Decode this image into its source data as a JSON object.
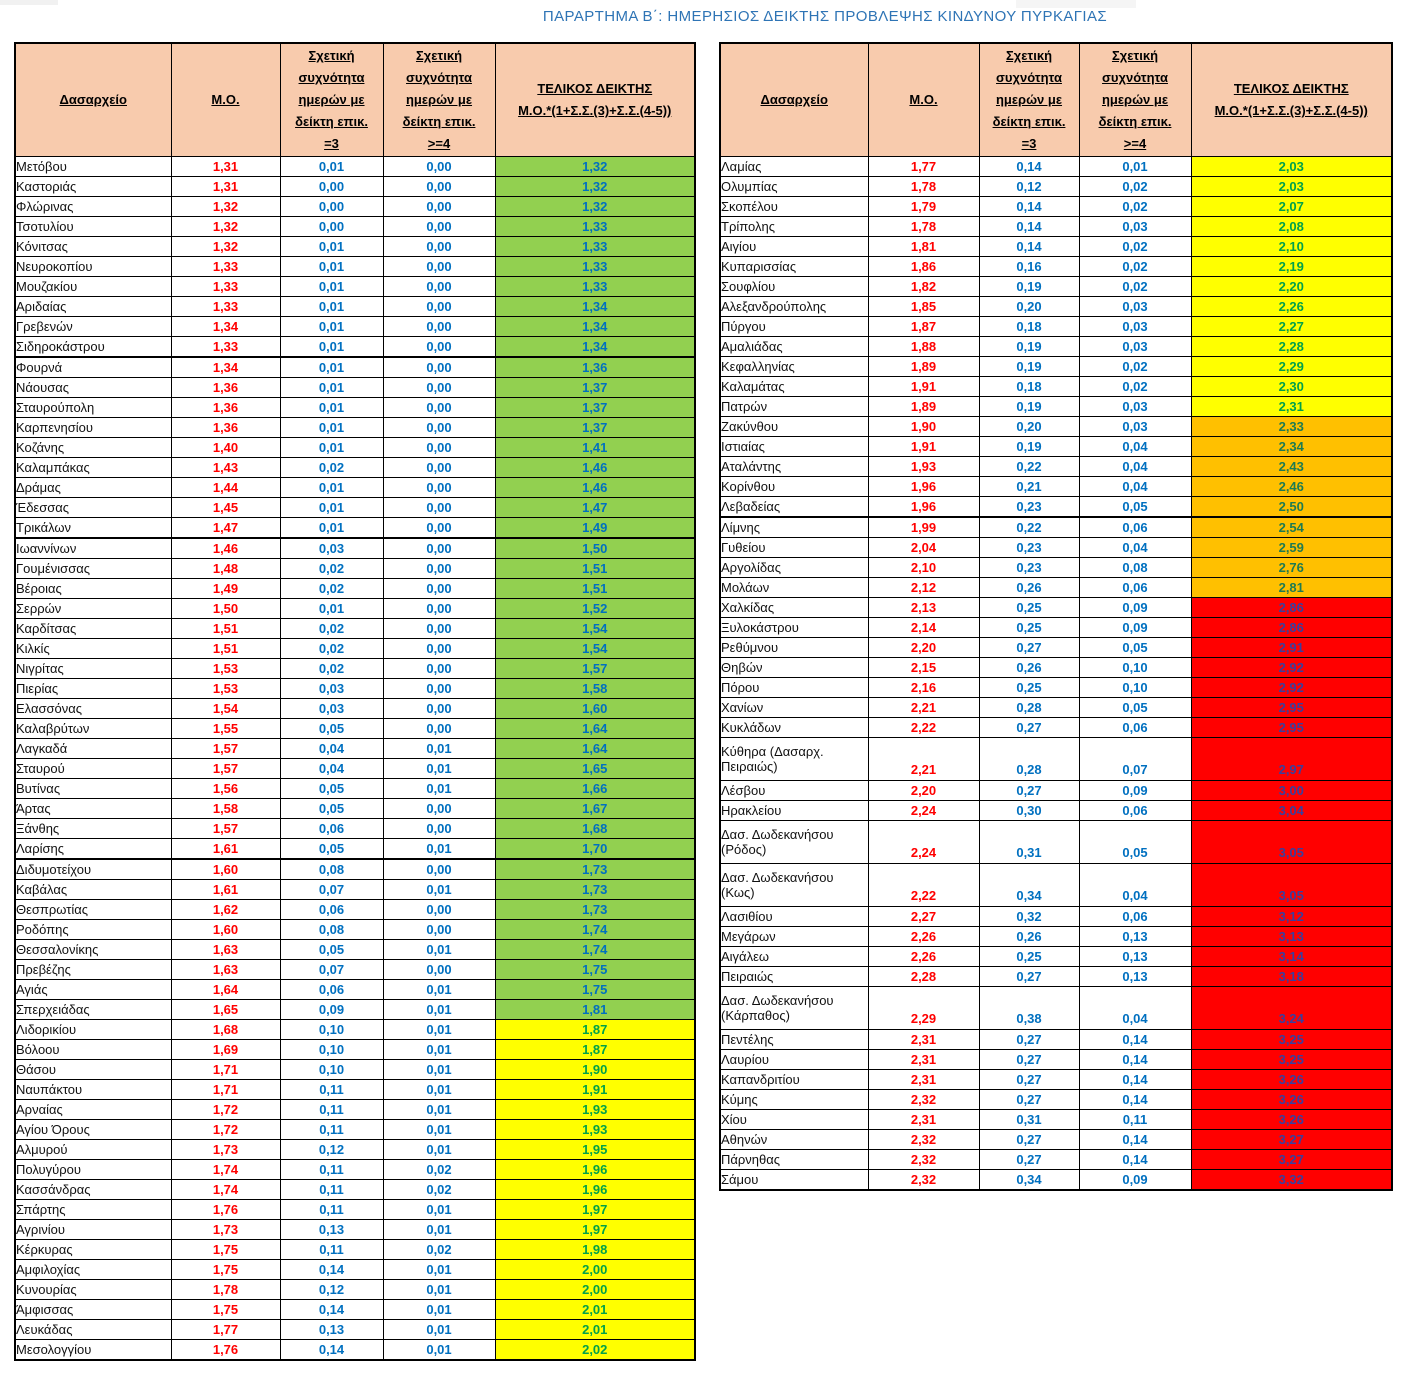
{
  "title": "ΠΑΡΑΡΤΗΜΑ Β΄: ΗΜΕΡΗΣΙΟΣ ΔΕΙΚΤΗΣ ΠΡΟΒΛΕΨΗΣ ΚΙΝΔΥΝΟΥ ΠΥΡΚΑΓΙΑΣ",
  "columns": {
    "office": "Δασαρχείο",
    "mean": "Μ.Ο.",
    "freq3": "Σχετική\nσυχνότητα\nημερών με\nδείκτη επικ.\n=3",
    "freq4": "Σχετική\nσυχνότητα\nημερών με\nδείκτη επικ.\n>=4",
    "final": "ΤΕΛΙΚΟΣ ΔΕΙΚΤΗΣ\nΜ.Ο.*(1+Σ.Σ.(3)+Σ.Σ.(4-5))"
  },
  "palette": {
    "header_bg": "#F8CBAD",
    "tier_green": "#92D050",
    "tier_yellow": "#FFFF00",
    "tier_orange": "#FFC000",
    "tier_red": "#FF0000",
    "mean_text": "#FF0000",
    "freq_text": "#0070C0",
    "title_text": "#2E74B5"
  },
  "tables": {
    "left": {
      "rows": [
        {
          "name": "Μετόβου",
          "mo": "1,31",
          "f3": "0,01",
          "f4": "0,00",
          "final": "1,32",
          "tier": "green"
        },
        {
          "name": "Καστοριάς",
          "mo": "1,31",
          "f3": "0,00",
          "f4": "0,00",
          "final": "1,32",
          "tier": "green"
        },
        {
          "name": "Φλώρινας",
          "mo": "1,32",
          "f3": "0,00",
          "f4": "0,00",
          "final": "1,32",
          "tier": "green"
        },
        {
          "name": "Τσοτυλίου",
          "mo": "1,32",
          "f3": "0,00",
          "f4": "0,00",
          "final": "1,33",
          "tier": "green"
        },
        {
          "name": "Κόνιτσας",
          "mo": "1,32",
          "f3": "0,01",
          "f4": "0,00",
          "final": "1,33",
          "tier": "green"
        },
        {
          "name": "Νευροκοπίου",
          "mo": "1,33",
          "f3": "0,01",
          "f4": "0,00",
          "final": "1,33",
          "tier": "green"
        },
        {
          "name": "Μουζακίου",
          "mo": "1,33",
          "f3": "0,01",
          "f4": "0,00",
          "final": "1,33",
          "tier": "green"
        },
        {
          "name": "Αριδαίας",
          "mo": "1,33",
          "f3": "0,01",
          "f4": "0,00",
          "final": "1,34",
          "tier": "green"
        },
        {
          "name": "Γρεβενών",
          "mo": "1,34",
          "f3": "0,01",
          "f4": "0,00",
          "final": "1,34",
          "tier": "green"
        },
        {
          "name": "Σιδηροκάστρου",
          "mo": "1,33",
          "f3": "0,01",
          "f4": "0,00",
          "final": "1,34",
          "tier": "green",
          "sep": true
        },
        {
          "name": "Φουρνά",
          "mo": "1,34",
          "f3": "0,01",
          "f4": "0,00",
          "final": "1,36",
          "tier": "green"
        },
        {
          "name": "Νάουσας",
          "mo": "1,36",
          "f3": "0,01",
          "f4": "0,00",
          "final": "1,37",
          "tier": "green"
        },
        {
          "name": "Σταυρούπολη",
          "mo": "1,36",
          "f3": "0,01",
          "f4": "0,00",
          "final": "1,37",
          "tier": "green"
        },
        {
          "name": "Καρπενησίου",
          "mo": "1,36",
          "f3": "0,01",
          "f4": "0,00",
          "final": "1,37",
          "tier": "green"
        },
        {
          "name": "Κοζάνης",
          "mo": "1,40",
          "f3": "0,01",
          "f4": "0,00",
          "final": "1,41",
          "tier": "green"
        },
        {
          "name": "Καλαμπάκας",
          "mo": "1,43",
          "f3": "0,02",
          "f4": "0,00",
          "final": "1,46",
          "tier": "green"
        },
        {
          "name": "Δράμας",
          "mo": "1,44",
          "f3": "0,01",
          "f4": "0,00",
          "final": "1,46",
          "tier": "green"
        },
        {
          "name": "Έδεσσας",
          "mo": "1,45",
          "f3": "0,01",
          "f4": "0,00",
          "final": "1,47",
          "tier": "green"
        },
        {
          "name": "Τρικάλων",
          "mo": "1,47",
          "f3": "0,01",
          "f4": "0,00",
          "final": "1,49",
          "tier": "green",
          "sep": true
        },
        {
          "name": "Ιωαννίνων",
          "mo": "1,46",
          "f3": "0,03",
          "f4": "0,00",
          "final": "1,50",
          "tier": "green"
        },
        {
          "name": "Γουμένισσας",
          "mo": "1,48",
          "f3": "0,02",
          "f4": "0,00",
          "final": "1,51",
          "tier": "green"
        },
        {
          "name": "Βέροιας",
          "mo": "1,49",
          "f3": "0,02",
          "f4": "0,00",
          "final": "1,51",
          "tier": "green"
        },
        {
          "name": "Σερρών",
          "mo": "1,50",
          "f3": "0,01",
          "f4": "0,00",
          "final": "1,52",
          "tier": "green"
        },
        {
          "name": "Καρδίτσας",
          "mo": "1,51",
          "f3": "0,02",
          "f4": "0,00",
          "final": "1,54",
          "tier": "green"
        },
        {
          "name": "Κιλκίς",
          "mo": "1,51",
          "f3": "0,02",
          "f4": "0,00",
          "final": "1,54",
          "tier": "green"
        },
        {
          "name": "Νιγρίτας",
          "mo": "1,53",
          "f3": "0,02",
          "f4": "0,00",
          "final": "1,57",
          "tier": "green"
        },
        {
          "name": "Πιερίας",
          "mo": "1,53",
          "f3": "0,03",
          "f4": "0,00",
          "final": "1,58",
          "tier": "green"
        },
        {
          "name": "Ελασσόνας",
          "mo": "1,54",
          "f3": "0,03",
          "f4": "0,00",
          "final": "1,60",
          "tier": "green"
        },
        {
          "name": "Καλαβρύτων",
          "mo": "1,55",
          "f3": "0,05",
          "f4": "0,00",
          "final": "1,64",
          "tier": "green"
        },
        {
          "name": "Λαγκαδά",
          "mo": "1,57",
          "f3": "0,04",
          "f4": "0,01",
          "final": "1,64",
          "tier": "green"
        },
        {
          "name": "Σταυρού",
          "mo": "1,57",
          "f3": "0,04",
          "f4": "0,01",
          "final": "1,65",
          "tier": "green"
        },
        {
          "name": "Βυτίνας",
          "mo": "1,56",
          "f3": "0,05",
          "f4": "0,01",
          "final": "1,66",
          "tier": "green"
        },
        {
          "name": "Άρτας",
          "mo": "1,58",
          "f3": "0,05",
          "f4": "0,00",
          "final": "1,67",
          "tier": "green"
        },
        {
          "name": "Ξάνθης",
          "mo": "1,57",
          "f3": "0,06",
          "f4": "0,00",
          "final": "1,68",
          "tier": "green"
        },
        {
          "name": "Λαρίσης",
          "mo": "1,61",
          "f3": "0,05",
          "f4": "0,01",
          "final": "1,70",
          "tier": "green",
          "sep": true
        },
        {
          "name": "Διδυμοτείχου",
          "mo": "1,60",
          "f3": "0,08",
          "f4": "0,00",
          "final": "1,73",
          "tier": "green"
        },
        {
          "name": "Καβάλας",
          "mo": "1,61",
          "f3": "0,07",
          "f4": "0,01",
          "final": "1,73",
          "tier": "green"
        },
        {
          "name": "Θεσπρωτίας",
          "mo": "1,62",
          "f3": "0,06",
          "f4": "0,00",
          "final": "1,73",
          "tier": "green"
        },
        {
          "name": "Ροδόπης",
          "mo": "1,60",
          "f3": "0,08",
          "f4": "0,00",
          "final": "1,74",
          "tier": "green"
        },
        {
          "name": "Θεσσαλονίκης",
          "mo": "1,63",
          "f3": "0,05",
          "f4": "0,01",
          "final": "1,74",
          "tier": "green"
        },
        {
          "name": "Πρεβέζης",
          "mo": "1,63",
          "f3": "0,07",
          "f4": "0,00",
          "final": "1,75",
          "tier": "green"
        },
        {
          "name": "Αγιάς",
          "mo": "1,64",
          "f3": "0,06",
          "f4": "0,01",
          "final": "1,75",
          "tier": "green"
        },
        {
          "name": "Σπερχειάδας",
          "mo": "1,65",
          "f3": "0,09",
          "f4": "0,01",
          "final": "1,81",
          "tier": "green"
        },
        {
          "name": "Λιδορικίου",
          "mo": "1,68",
          "f3": "0,10",
          "f4": "0,01",
          "final": "1,87",
          "tier": "yellow"
        },
        {
          "name": "Βόλοου",
          "mo": "1,69",
          "f3": "0,10",
          "f4": "0,01",
          "final": "1,87",
          "tier": "yellow"
        },
        {
          "name": "Θάσου",
          "mo": "1,71",
          "f3": "0,10",
          "f4": "0,01",
          "final": "1,90",
          "tier": "yellow"
        },
        {
          "name": "Ναυπάκτου",
          "mo": "1,71",
          "f3": "0,11",
          "f4": "0,01",
          "final": "1,91",
          "tier": "yellow"
        },
        {
          "name": "Αρναίας",
          "mo": "1,72",
          "f3": "0,11",
          "f4": "0,01",
          "final": "1,93",
          "tier": "yellow"
        },
        {
          "name": "Αγίου Όρους",
          "mo": "1,72",
          "f3": "0,11",
          "f4": "0,01",
          "final": "1,93",
          "tier": "yellow"
        },
        {
          "name": "Αλμυρού",
          "mo": "1,73",
          "f3": "0,12",
          "f4": "0,01",
          "final": "1,95",
          "tier": "yellow"
        },
        {
          "name": "Πολυγύρου",
          "mo": "1,74",
          "f3": "0,11",
          "f4": "0,02",
          "final": "1,96",
          "tier": "yellow"
        },
        {
          "name": "Κασσάνδρας",
          "mo": "1,74",
          "f3": "0,11",
          "f4": "0,02",
          "final": "1,96",
          "tier": "yellow"
        },
        {
          "name": "Σπάρτης",
          "mo": "1,76",
          "f3": "0,11",
          "f4": "0,01",
          "final": "1,97",
          "tier": "yellow"
        },
        {
          "name": "Αγρινίου",
          "mo": "1,73",
          "f3": "0,13",
          "f4": "0,01",
          "final": "1,97",
          "tier": "yellow"
        },
        {
          "name": "Κέρκυρας",
          "mo": "1,75",
          "f3": "0,11",
          "f4": "0,02",
          "final": "1,98",
          "tier": "yellow"
        },
        {
          "name": "Αμφιλοχίας",
          "mo": "1,75",
          "f3": "0,14",
          "f4": "0,01",
          "final": "2,00",
          "tier": "yellow"
        },
        {
          "name": "Κυνουρίας",
          "mo": "1,78",
          "f3": "0,12",
          "f4": "0,01",
          "final": "2,00",
          "tier": "yellow"
        },
        {
          "name": "Άμφισσας",
          "mo": "1,75",
          "f3": "0,14",
          "f4": "0,01",
          "final": "2,01",
          "tier": "yellow"
        },
        {
          "name": "Λευκάδας",
          "mo": "1,77",
          "f3": "0,13",
          "f4": "0,01",
          "final": "2,01",
          "tier": "yellow"
        },
        {
          "name": "Μεσολογγίου",
          "mo": "1,76",
          "f3": "0,14",
          "f4": "0,01",
          "final": "2,02",
          "tier": "yellow"
        }
      ]
    },
    "right": {
      "rows": [
        {
          "name": "Λαμίας",
          "mo": "1,77",
          "f3": "0,14",
          "f4": "0,01",
          "final": "2,03",
          "tier": "yellow"
        },
        {
          "name": "Ολυμπίας",
          "mo": "1,78",
          "f3": "0,12",
          "f4": "0,02",
          "final": "2,03",
          "tier": "yellow"
        },
        {
          "name": "Σκοπέλου",
          "mo": "1,79",
          "f3": "0,14",
          "f4": "0,02",
          "final": "2,07",
          "tier": "yellow"
        },
        {
          "name": "Τρίπολης",
          "mo": "1,78",
          "f3": "0,14",
          "f4": "0,03",
          "final": "2,08",
          "tier": "yellow"
        },
        {
          "name": "Αιγίου",
          "mo": "1,81",
          "f3": "0,14",
          "f4": "0,02",
          "final": "2,10",
          "tier": "yellow"
        },
        {
          "name": "Κυπαρισσίας",
          "mo": "1,86",
          "f3": "0,16",
          "f4": "0,02",
          "final": "2,19",
          "tier": "yellow"
        },
        {
          "name": "Σουφλίου",
          "mo": "1,82",
          "f3": "0,19",
          "f4": "0,02",
          "final": "2,20",
          "tier": "yellow"
        },
        {
          "name": "Αλεξανδρούπολης",
          "mo": "1,85",
          "f3": "0,20",
          "f4": "0,03",
          "final": "2,26",
          "tier": "yellow"
        },
        {
          "name": "Πύργου",
          "mo": "1,87",
          "f3": "0,18",
          "f4": "0,03",
          "final": "2,27",
          "tier": "yellow"
        },
        {
          "name": "Αμαλιάδας",
          "mo": "1,88",
          "f3": "0,19",
          "f4": "0,03",
          "final": "2,28",
          "tier": "yellow"
        },
        {
          "name": "Κεφαλληνίας",
          "mo": "1,89",
          "f3": "0,19",
          "f4": "0,02",
          "final": "2,29",
          "tier": "yellow"
        },
        {
          "name": "Καλαμάτας",
          "mo": "1,91",
          "f3": "0,18",
          "f4": "0,02",
          "final": "2,30",
          "tier": "yellow"
        },
        {
          "name": "Πατρών",
          "mo": "1,89",
          "f3": "0,19",
          "f4": "0,03",
          "final": "2,31",
          "tier": "yellow"
        },
        {
          "name": "Ζακύνθου",
          "mo": "1,90",
          "f3": "0,20",
          "f4": "0,03",
          "final": "2,33",
          "tier": "orange"
        },
        {
          "name": "Ιστιαίας",
          "mo": "1,91",
          "f3": "0,19",
          "f4": "0,04",
          "final": "2,34",
          "tier": "orange"
        },
        {
          "name": "Αταλάντης",
          "mo": "1,93",
          "f3": "0,22",
          "f4": "0,04",
          "final": "2,43",
          "tier": "orange"
        },
        {
          "name": "Κορίνθου",
          "mo": "1,96",
          "f3": "0,21",
          "f4": "0,04",
          "final": "2,46",
          "tier": "orange"
        },
        {
          "name": "Λεβαδείας",
          "mo": "1,96",
          "f3": "0,23",
          "f4": "0,05",
          "final": "2,50",
          "tier": "orange",
          "sep": true
        },
        {
          "name": "Λίμνης",
          "mo": "1,99",
          "f3": "0,22",
          "f4": "0,06",
          "final": "2,54",
          "tier": "orange"
        },
        {
          "name": "Γυθείου",
          "mo": "2,04",
          "f3": "0,23",
          "f4": "0,04",
          "final": "2,59",
          "tier": "orange"
        },
        {
          "name": "Αργολίδας",
          "mo": "2,10",
          "f3": "0,23",
          "f4": "0,08",
          "final": "2,76",
          "tier": "orange"
        },
        {
          "name": "Μολάων",
          "mo": "2,12",
          "f3": "0,26",
          "f4": "0,06",
          "final": "2,81",
          "tier": "orange"
        },
        {
          "name": "Χαλκίδας",
          "mo": "2,13",
          "f3": "0,25",
          "f4": "0,09",
          "final": "2,86",
          "tier": "red"
        },
        {
          "name": "Ξυλοκάστρου",
          "mo": "2,14",
          "f3": "0,25",
          "f4": "0,09",
          "final": "2,86",
          "tier": "red"
        },
        {
          "name": "Ρεθύμνου",
          "mo": "2,20",
          "f3": "0,27",
          "f4": "0,05",
          "final": "2,91",
          "tier": "red"
        },
        {
          "name": "Θηβών",
          "mo": "2,15",
          "f3": "0,26",
          "f4": "0,10",
          "final": "2,92",
          "tier": "red"
        },
        {
          "name": "Πόρου",
          "mo": "2,16",
          "f3": "0,25",
          "f4": "0,10",
          "final": "2,92",
          "tier": "red"
        },
        {
          "name": "Χανίων",
          "mo": "2,21",
          "f3": "0,28",
          "f4": "0,05",
          "final": "2,95",
          "tier": "red"
        },
        {
          "name": "Κυκλάδων",
          "mo": "2,22",
          "f3": "0,27",
          "f4": "0,06",
          "final": "2,95",
          "tier": "red"
        },
        {
          "name": "Κύθηρα (Δασαρχ. Πειραιώς)",
          "mo": "2,21",
          "f3": "0,28",
          "f4": "0,07",
          "final": "2,97",
          "tier": "red"
        },
        {
          "name": "Λέσβου",
          "mo": "2,20",
          "f3": "0,27",
          "f4": "0,09",
          "final": "3,00",
          "tier": "red"
        },
        {
          "name": "Ηρακλείου",
          "mo": "2,24",
          "f3": "0,30",
          "f4": "0,06",
          "final": "3,04",
          "tier": "red"
        },
        {
          "name": "Δασ. Δωδεκανήσου (Ρόδος)",
          "mo": "2,24",
          "f3": "0,31",
          "f4": "0,05",
          "final": "3,05",
          "tier": "red"
        },
        {
          "name": "Δασ. Δωδεκανήσου (Κως)",
          "mo": "2,22",
          "f3": "0,34",
          "f4": "0,04",
          "final": "3,05",
          "tier": "red"
        },
        {
          "name": "Λασιθίου",
          "mo": "2,27",
          "f3": "0,32",
          "f4": "0,06",
          "final": "3,12",
          "tier": "red"
        },
        {
          "name": "Μεγάρων",
          "mo": "2,26",
          "f3": "0,26",
          "f4": "0,13",
          "final": "3,13",
          "tier": "red"
        },
        {
          "name": "Αιγάλεω",
          "mo": "2,26",
          "f3": "0,25",
          "f4": "0,13",
          "final": "3,14",
          "tier": "red"
        },
        {
          "name": "Πειραιώς",
          "mo": "2,28",
          "f3": "0,27",
          "f4": "0,13",
          "final": "3,18",
          "tier": "red"
        },
        {
          "name": "Δασ. Δωδεκανήσου (Κάρπαθος)",
          "mo": "2,29",
          "f3": "0,38",
          "f4": "0,04",
          "final": "3,24",
          "tier": "red"
        },
        {
          "name": "Πεντέλης",
          "mo": "2,31",
          "f3": "0,27",
          "f4": "0,14",
          "final": "3,25",
          "tier": "red"
        },
        {
          "name": "Λαυρίου",
          "mo": "2,31",
          "f3": "0,27",
          "f4": "0,14",
          "final": "3,25",
          "tier": "red"
        },
        {
          "name": "Καπανδριτίου",
          "mo": "2,31",
          "f3": "0,27",
          "f4": "0,14",
          "final": "3,26",
          "tier": "red"
        },
        {
          "name": "Κύμης",
          "mo": "2,32",
          "f3": "0,27",
          "f4": "0,14",
          "final": "3,26",
          "tier": "red"
        },
        {
          "name": "Χίου",
          "mo": "2,31",
          "f3": "0,31",
          "f4": "0,11",
          "final": "3,26",
          "tier": "red"
        },
        {
          "name": "Αθηνών",
          "mo": "2,32",
          "f3": "0,27",
          "f4": "0,14",
          "final": "3,27",
          "tier": "red"
        },
        {
          "name": "Πάρνηθας",
          "mo": "2,32",
          "f3": "0,27",
          "f4": "0,14",
          "final": "3,27",
          "tier": "red"
        },
        {
          "name": "Σάμου",
          "mo": "2,32",
          "f3": "0,34",
          "f4": "0,09",
          "final": "3,32",
          "tier": "red"
        }
      ]
    }
  }
}
